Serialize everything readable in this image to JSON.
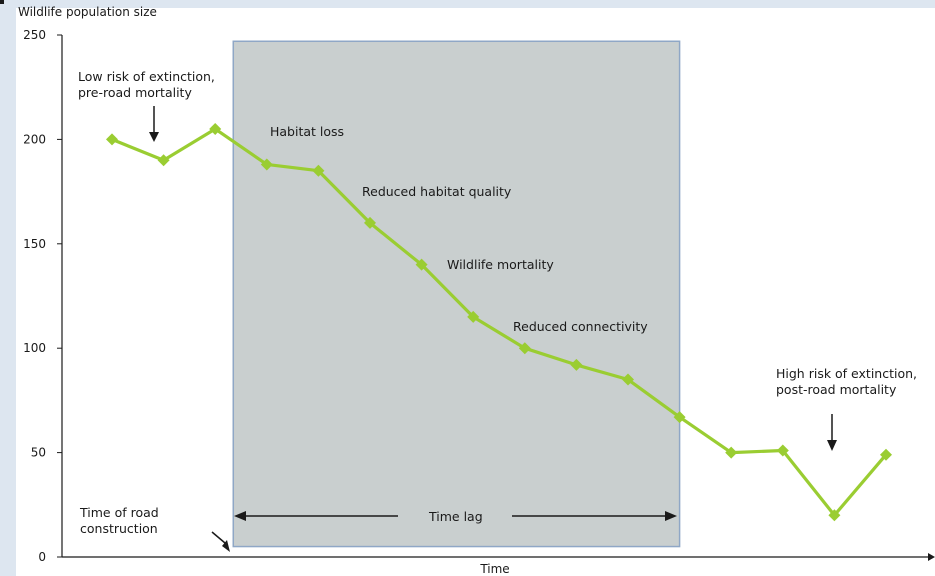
{
  "colors": {
    "line": "#9acd32",
    "marker": "#9acd32",
    "shade_fill": "#c9cfcf",
    "shade_stroke": "#8fa7c6",
    "left_strip": "#dde6f0",
    "top_strip": "#dde6f0",
    "axis": "#1a1a1a"
  },
  "chart_data": {
    "type": "line",
    "title": "",
    "xlabel": "Time",
    "ylabel": "Wildlife population size",
    "ylim": [
      0,
      250
    ],
    "yticks": [
      0,
      50,
      100,
      150,
      200,
      250
    ],
    "x": [
      1,
      2,
      3,
      4,
      5,
      6,
      7,
      8,
      9,
      10,
      11,
      12,
      13,
      14,
      15,
      16
    ],
    "series": [
      {
        "values": [
          200,
          190,
          205,
          188,
          185,
          160,
          140,
          115,
          100,
          92,
          85,
          67,
          50,
          51,
          20,
          49
        ]
      }
    ],
    "shaded_region": {
      "x_from": 3.35,
      "x_to": 12.0,
      "y_from": 5,
      "y_to": 247
    },
    "annotations": {
      "low_risk": [
        "Low risk of extinction,",
        "pre-road mortality"
      ],
      "high_risk": [
        "High risk of extinction,",
        "post-road mortality"
      ],
      "road": [
        "Time of road",
        "construction"
      ],
      "habitat_loss": "Habitat loss",
      "reduced_quality": "Reduced habitat quality",
      "wildlife_mortality": "Wildlife mortality",
      "reduced_connectivity": "Reduced connectivity",
      "time_lag": "Time lag"
    }
  }
}
